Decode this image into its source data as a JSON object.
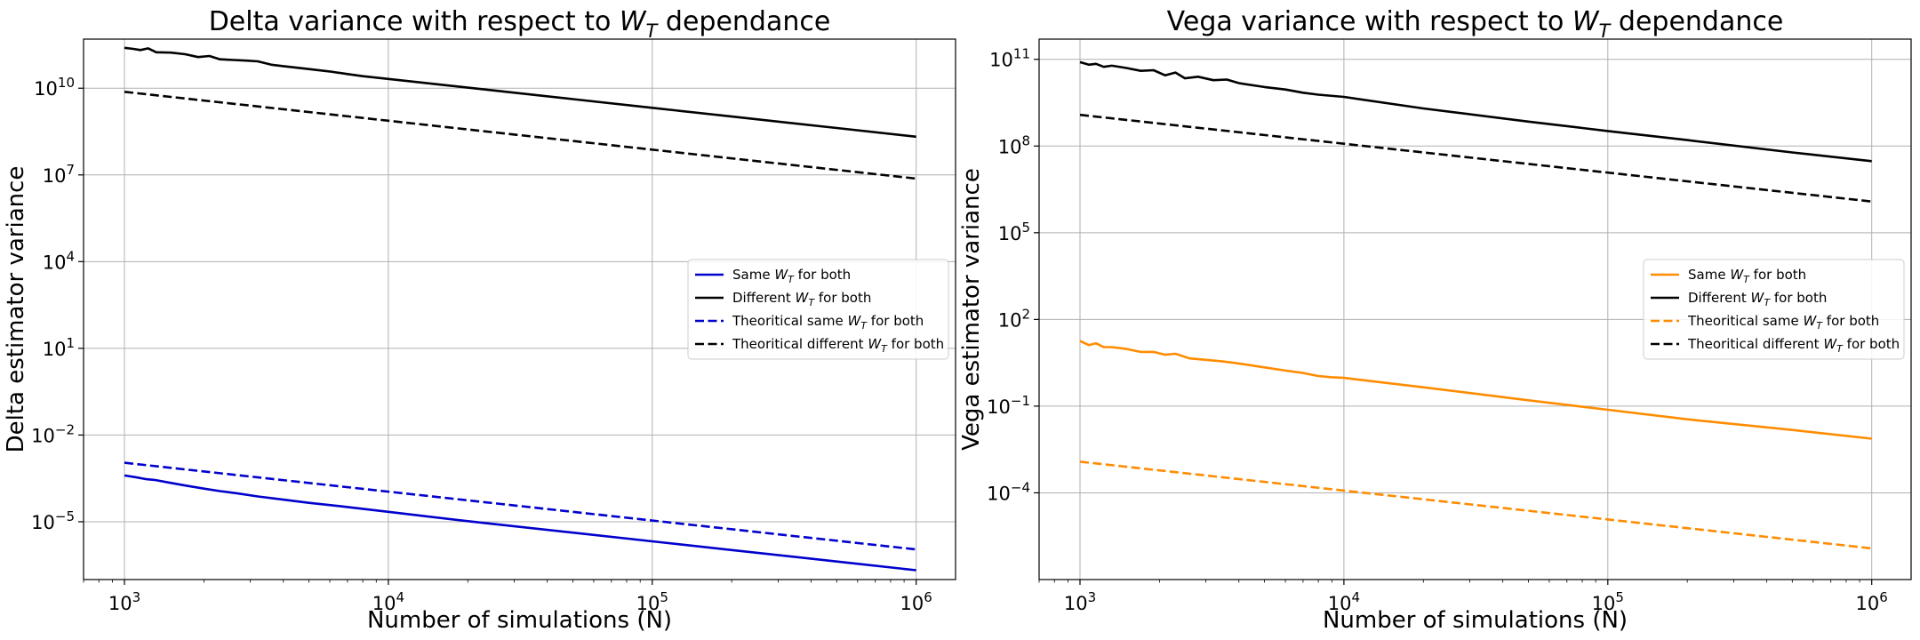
{
  "chart_data": [
    {
      "type": "line",
      "title": "Delta variance with respect to W_T dependance",
      "title_parts": {
        "prefix": "Delta variance with respect to ",
        "var": "W",
        "sub": "T",
        "suffix": " dependance"
      },
      "xlabel": "Number of simulations (N)",
      "ylabel": "Delta estimator variance",
      "xscale": "log",
      "yscale": "log",
      "xlim": [
        700,
        1410000
      ],
      "ylim": [
        1e-07,
        500000000000.0
      ],
      "xticks": [
        {
          "value": 1000,
          "base": "10",
          "exp": "3"
        },
        {
          "value": 10000,
          "base": "10",
          "exp": "4"
        },
        {
          "value": 100000,
          "base": "10",
          "exp": "5"
        },
        {
          "value": 1000000,
          "base": "10",
          "exp": "6"
        }
      ],
      "yticks": [
        {
          "value": 1e-05,
          "base": "10",
          "exp": "−5"
        },
        {
          "value": 0.01,
          "base": "10",
          "exp": "−2"
        },
        {
          "value": 10,
          "base": "10",
          "exp": "1"
        },
        {
          "value": 10000.0,
          "base": "10",
          "exp": "4"
        },
        {
          "value": 10000000.0,
          "base": "10",
          "exp": "7"
        },
        {
          "value": 10000000000.0,
          "base": "10",
          "exp": "10"
        }
      ],
      "grid": true,
      "legend_position": "center-right",
      "series": [
        {
          "name": "Same W_T for both",
          "legend_parts": {
            "prefix": "Same ",
            "var": "W",
            "sub": "T",
            "suffix": " for both"
          },
          "color": "#0000cc",
          "dash": "solid",
          "x": [
            1000,
            1100,
            1200,
            1300,
            1500,
            1700,
            2000,
            2300,
            2700,
            3200,
            4000,
            5000,
            6500,
            8000,
            10000,
            20000,
            50000,
            100000,
            200000,
            500000,
            1000000
          ],
          "y": [
            0.0004,
            0.00035,
            0.0003,
            0.00028,
            0.00022,
            0.00018,
            0.00014,
            0.000115,
            9.5e-05,
            7.5e-05,
            5.8e-05,
            4.5e-05,
            3.5e-05,
            2.8e-05,
            2.2e-05,
            1.05e-05,
            4.2e-06,
            2.1e-06,
            1.05e-06,
            4.2e-07,
            2.1e-07
          ]
        },
        {
          "name": "Different W_T for both",
          "legend_parts": {
            "prefix": "Different ",
            "var": "W",
            "sub": "T",
            "suffix": " for both"
          },
          "color": "#000000",
          "dash": "solid",
          "x": [
            1000,
            1080,
            1150,
            1230,
            1320,
            1500,
            1700,
            1900,
            2100,
            2300,
            2600,
            2900,
            3200,
            3600,
            4000,
            5000,
            6000,
            7000,
            8000,
            10000,
            20000,
            50000,
            100000,
            200000,
            500000,
            1000000
          ],
          "y": [
            250000000000,
            230000000000,
            210000000000,
            240000000000,
            175000000000,
            170000000000,
            150000000000,
            120000000000,
            130000000000,
            100000000000,
            95000000000,
            90000000000,
            85000000000,
            65000000000,
            58000000000,
            46000000000,
            38000000000,
            31000000000,
            26000000000,
            21000000000,
            10500000000,
            4200000000,
            2100000000,
            1050000000,
            420000000,
            210000000
          ]
        },
        {
          "name": "Theoritical same W_T for both",
          "legend_parts": {
            "prefix": "Theoritical same ",
            "var": "W",
            "sub": "T",
            "suffix": " for both"
          },
          "color": "#0000cc",
          "dash": "dashed",
          "x": [
            1000,
            1000000
          ],
          "y": [
            0.0011,
            1.1e-06
          ]
        },
        {
          "name": "Theoritical different W_T for both",
          "legend_parts": {
            "prefix": "Theoritical different ",
            "var": "W",
            "sub": "T",
            "suffix": " for both"
          },
          "color": "#000000",
          "dash": "dashed",
          "x": [
            1000,
            1000000
          ],
          "y": [
            7500000000,
            7500000
          ]
        }
      ]
    },
    {
      "type": "line",
      "title": "Vega variance with respect to W_T dependance",
      "title_parts": {
        "prefix": "Vega variance with respect to ",
        "var": "W",
        "sub": "T",
        "suffix": " dependance"
      },
      "xlabel": "Number of simulations (N)",
      "ylabel": "Vega estimator variance",
      "xscale": "log",
      "yscale": "log",
      "xlim": [
        700,
        1410000
      ],
      "ylim": [
        1e-07,
        500000000000.0
      ],
      "xticks": [
        {
          "value": 1000,
          "base": "10",
          "exp": "3"
        },
        {
          "value": 10000,
          "base": "10",
          "exp": "4"
        },
        {
          "value": 100000,
          "base": "10",
          "exp": "5"
        },
        {
          "value": 1000000,
          "base": "10",
          "exp": "6"
        }
      ],
      "yticks": [
        {
          "value": 0.0001,
          "base": "10",
          "exp": "−4"
        },
        {
          "value": 0.1,
          "base": "10",
          "exp": "−1"
        },
        {
          "value": 100,
          "base": "10",
          "exp": "2"
        },
        {
          "value": 100000.0,
          "base": "10",
          "exp": "5"
        },
        {
          "value": 100000000.0,
          "base": "10",
          "exp": "8"
        },
        {
          "value": 100000000000.0,
          "base": "10",
          "exp": "11"
        }
      ],
      "grid": true,
      "legend_position": "center-right",
      "series": [
        {
          "name": "Same W_T for both",
          "legend_parts": {
            "prefix": "Same ",
            "var": "W",
            "sub": "T",
            "suffix": " for both"
          },
          "color": "#ff8c00",
          "dash": "solid",
          "x": [
            1000,
            1080,
            1150,
            1230,
            1320,
            1500,
            1700,
            1900,
            2100,
            2300,
            2600,
            3000,
            3500,
            4000,
            5000,
            6000,
            7000,
            8000,
            9000,
            10000,
            20000,
            50000,
            100000,
            200000,
            500000,
            1000000
          ],
          "y": [
            18,
            13,
            15,
            11,
            11,
            9.5,
            7.5,
            7.5,
            6,
            6.5,
            4.5,
            4,
            3.5,
            3,
            2.2,
            1.7,
            1.4,
            1.1,
            1,
            0.95,
            0.45,
            0.16,
            0.075,
            0.035,
            0.015,
            0.0075
          ]
        },
        {
          "name": "Different W_T for both",
          "legend_parts": {
            "prefix": "Different ",
            "var": "W",
            "sub": "T",
            "suffix": " for both"
          },
          "color": "#000000",
          "dash": "solid",
          "x": [
            1000,
            1080,
            1150,
            1230,
            1320,
            1500,
            1700,
            1900,
            2100,
            2300,
            2500,
            2800,
            3200,
            3600,
            4000,
            5000,
            6000,
            7000,
            8000,
            10000,
            20000,
            50000,
            100000,
            200000,
            500000,
            1000000
          ],
          "y": [
            80000000000,
            65000000000,
            70000000000,
            55000000000,
            60000000000,
            50000000000,
            40000000000,
            42000000000,
            28000000000,
            35000000000,
            22000000000,
            25000000000,
            19000000000,
            20000000000,
            15000000000,
            11000000000,
            9000000000,
            7000000000,
            6000000000,
            5000000000,
            2000000000,
            700000000,
            330000000,
            160000000,
            60000000,
            30000000
          ]
        },
        {
          "name": "Theoritical same W_T for both",
          "legend_parts": {
            "prefix": "Theoritical same ",
            "var": "W",
            "sub": "T",
            "suffix": " for both"
          },
          "color": "#ff8c00",
          "dash": "dashed",
          "x": [
            1000,
            1000000
          ],
          "y": [
            0.0012,
            1.2e-06
          ]
        },
        {
          "name": "Theoritical different W_T for both",
          "legend_parts": {
            "prefix": "Theoritical different ",
            "var": "W",
            "sub": "T",
            "suffix": " for both"
          },
          "color": "#000000",
          "dash": "dashed",
          "x": [
            1000,
            1000000
          ],
          "y": [
            1200000000,
            1200000
          ]
        }
      ]
    }
  ]
}
